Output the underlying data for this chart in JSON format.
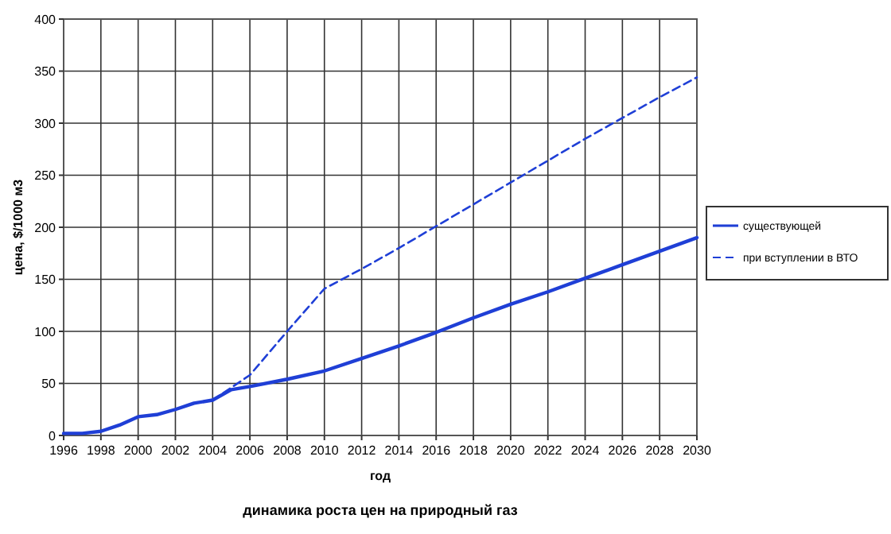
{
  "chart_data": {
    "type": "line",
    "title": "динамика роста цен на природный газ",
    "xlabel": "год",
    "ylabel": "цена, $/1000 м3",
    "xlim": [
      1996,
      2030
    ],
    "xticks": [
      1996,
      1998,
      2000,
      2002,
      2004,
      2006,
      2008,
      2010,
      2012,
      2014,
      2016,
      2018,
      2020,
      2022,
      2024,
      2026,
      2028,
      2030
    ],
    "ylim": [
      0,
      400
    ],
    "yticks": [
      0,
      50,
      100,
      150,
      200,
      250,
      300,
      350,
      400
    ],
    "grid": true,
    "legend": "right",
    "series": [
      {
        "name": "существующей",
        "color": "#1f3fd6",
        "line_style": "solid",
        "x": [
          1996,
          1997,
          1998,
          1999,
          2000,
          2001,
          2002,
          2003,
          2004,
          2005,
          2006,
          2008,
          2010,
          2012,
          2014,
          2016,
          2018,
          2020,
          2022,
          2024,
          2026,
          2028,
          2030
        ],
        "values": [
          2,
          2,
          4,
          10,
          18,
          20,
          25,
          31,
          34,
          44,
          47,
          54,
          62,
          74,
          86,
          99,
          113,
          126,
          138,
          151,
          164,
          177,
          190
        ]
      },
      {
        "name": "при вступлении в ВТО",
        "color": "#1f3fd6",
        "line_style": "dashed",
        "x": [
          2004,
          2006,
          2008,
          2010,
          2012,
          2014,
          2016,
          2020,
          2024,
          2026,
          2028,
          2030
        ],
        "values": [
          34,
          58,
          100,
          141,
          160,
          180,
          201,
          243,
          285,
          305,
          325,
          344
        ]
      }
    ]
  }
}
